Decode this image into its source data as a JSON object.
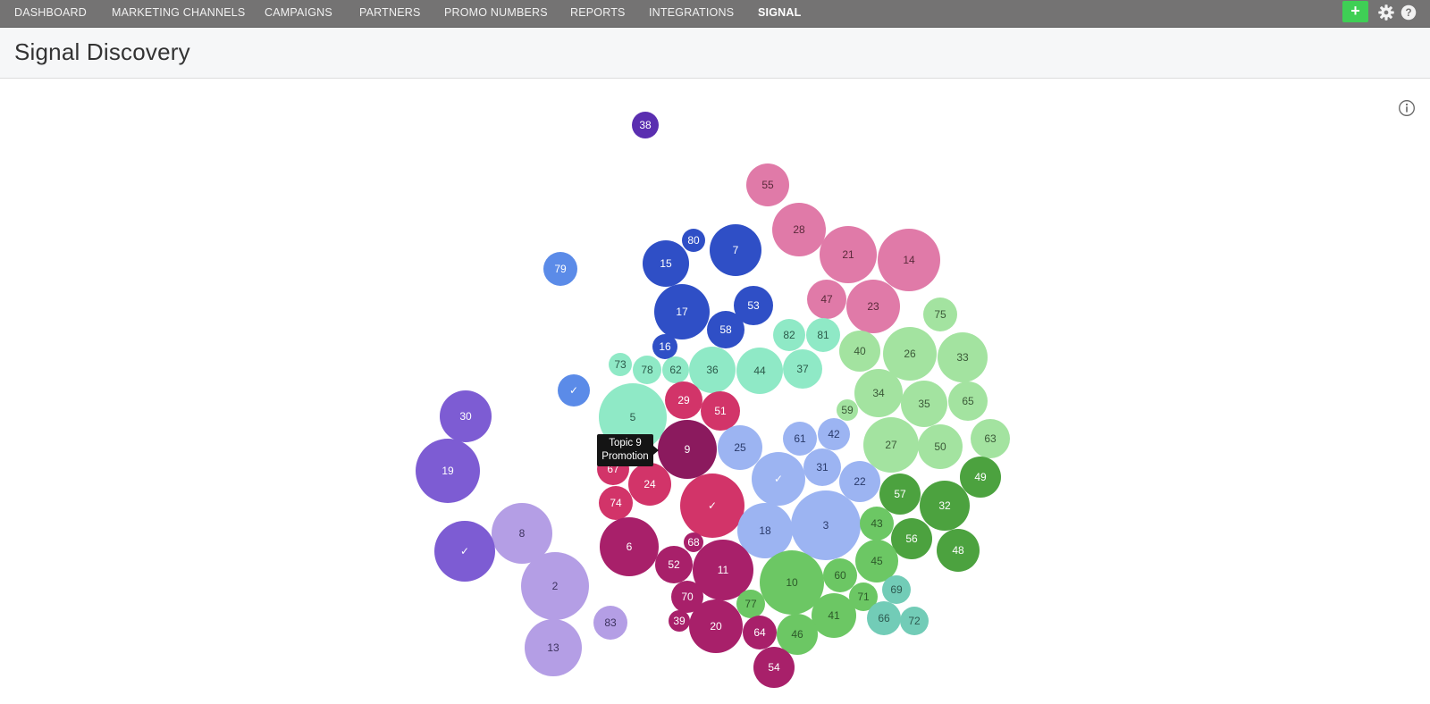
{
  "nav": {
    "items": [
      {
        "label": "DASHBOARD"
      },
      {
        "label": "MARKETING CHANNELS"
      },
      {
        "label": "CAMPAIGNS"
      },
      {
        "label": "PARTNERS"
      },
      {
        "label": "PROMO NUMBERS"
      },
      {
        "label": "REPORTS"
      },
      {
        "label": "INTEGRATIONS"
      },
      {
        "label": "SIGNAL",
        "active": true
      }
    ],
    "add_label": "+",
    "icons": [
      "gear-icon",
      "help-icon"
    ]
  },
  "page": {
    "title": "Signal Discovery"
  },
  "tooltip": {
    "line1": "Topic 9",
    "line2": "Promotion"
  },
  "colors": {
    "topbar": "#747373",
    "add_button": "#3fcf55",
    "royal_blue": "#2f4fc6",
    "light_blue": "#9cb4f2",
    "pink": "#e07aa8",
    "crimson": "#d23469",
    "magenta_dark": "#a8206a",
    "purple": "#7d5cd3",
    "lavender": "#b49ee5",
    "mint": "#8fe9c6",
    "light_green": "#a3e3a0",
    "green": "#6cc764",
    "dark_green": "#4ca23f",
    "teal": "#72ccb7"
  },
  "bubbles": [
    {
      "label": "38"
    },
    {
      "label": "55"
    },
    {
      "label": "28"
    },
    {
      "label": "21"
    },
    {
      "label": "14"
    },
    {
      "label": "47"
    },
    {
      "label": "23"
    },
    {
      "label": "80"
    },
    {
      "label": "7"
    },
    {
      "label": "15"
    },
    {
      "label": "79"
    },
    {
      "label": "17"
    },
    {
      "label": "53"
    },
    {
      "label": "58"
    },
    {
      "label": "16"
    },
    {
      "label": "75"
    },
    {
      "label": "82"
    },
    {
      "label": "81"
    },
    {
      "label": "40"
    },
    {
      "label": "26"
    },
    {
      "label": "33"
    },
    {
      "label": "73"
    },
    {
      "label": "78"
    },
    {
      "label": "62"
    },
    {
      "label": "36"
    },
    {
      "label": "44"
    },
    {
      "label": "37"
    },
    {
      "label": "34"
    },
    {
      "label": "35"
    },
    {
      "label": "65"
    },
    {
      "label": "✓"
    },
    {
      "label": "29"
    },
    {
      "label": "51"
    },
    {
      "label": "59"
    },
    {
      "label": "30"
    },
    {
      "label": "5"
    },
    {
      "label": "9"
    },
    {
      "label": "25"
    },
    {
      "label": "61"
    },
    {
      "label": "42"
    },
    {
      "label": "27"
    },
    {
      "label": "50"
    },
    {
      "label": "63"
    },
    {
      "label": "19"
    },
    {
      "label": "67"
    },
    {
      "label": "31"
    },
    {
      "label": "✓"
    },
    {
      "label": "22"
    },
    {
      "label": "49"
    },
    {
      "label": "24"
    },
    {
      "label": "57"
    },
    {
      "label": "32"
    },
    {
      "label": "74"
    },
    {
      "label": "✓"
    },
    {
      "label": "3"
    },
    {
      "label": "18"
    },
    {
      "label": "43"
    },
    {
      "label": "8"
    },
    {
      "label": "56"
    },
    {
      "label": "48"
    },
    {
      "label": "6"
    },
    {
      "label": "68"
    },
    {
      "label": "✓"
    },
    {
      "label": "45"
    },
    {
      "label": "52"
    },
    {
      "label": "11"
    },
    {
      "label": "10"
    },
    {
      "label": "60"
    },
    {
      "label": "2"
    },
    {
      "label": "69"
    },
    {
      "label": "70"
    },
    {
      "label": "71"
    },
    {
      "label": "77"
    },
    {
      "label": "41"
    },
    {
      "label": "83"
    },
    {
      "label": "39"
    },
    {
      "label": "20"
    },
    {
      "label": "64"
    },
    {
      "label": "46"
    },
    {
      "label": "66"
    },
    {
      "label": "72"
    },
    {
      "label": "13"
    },
    {
      "label": "54"
    }
  ]
}
